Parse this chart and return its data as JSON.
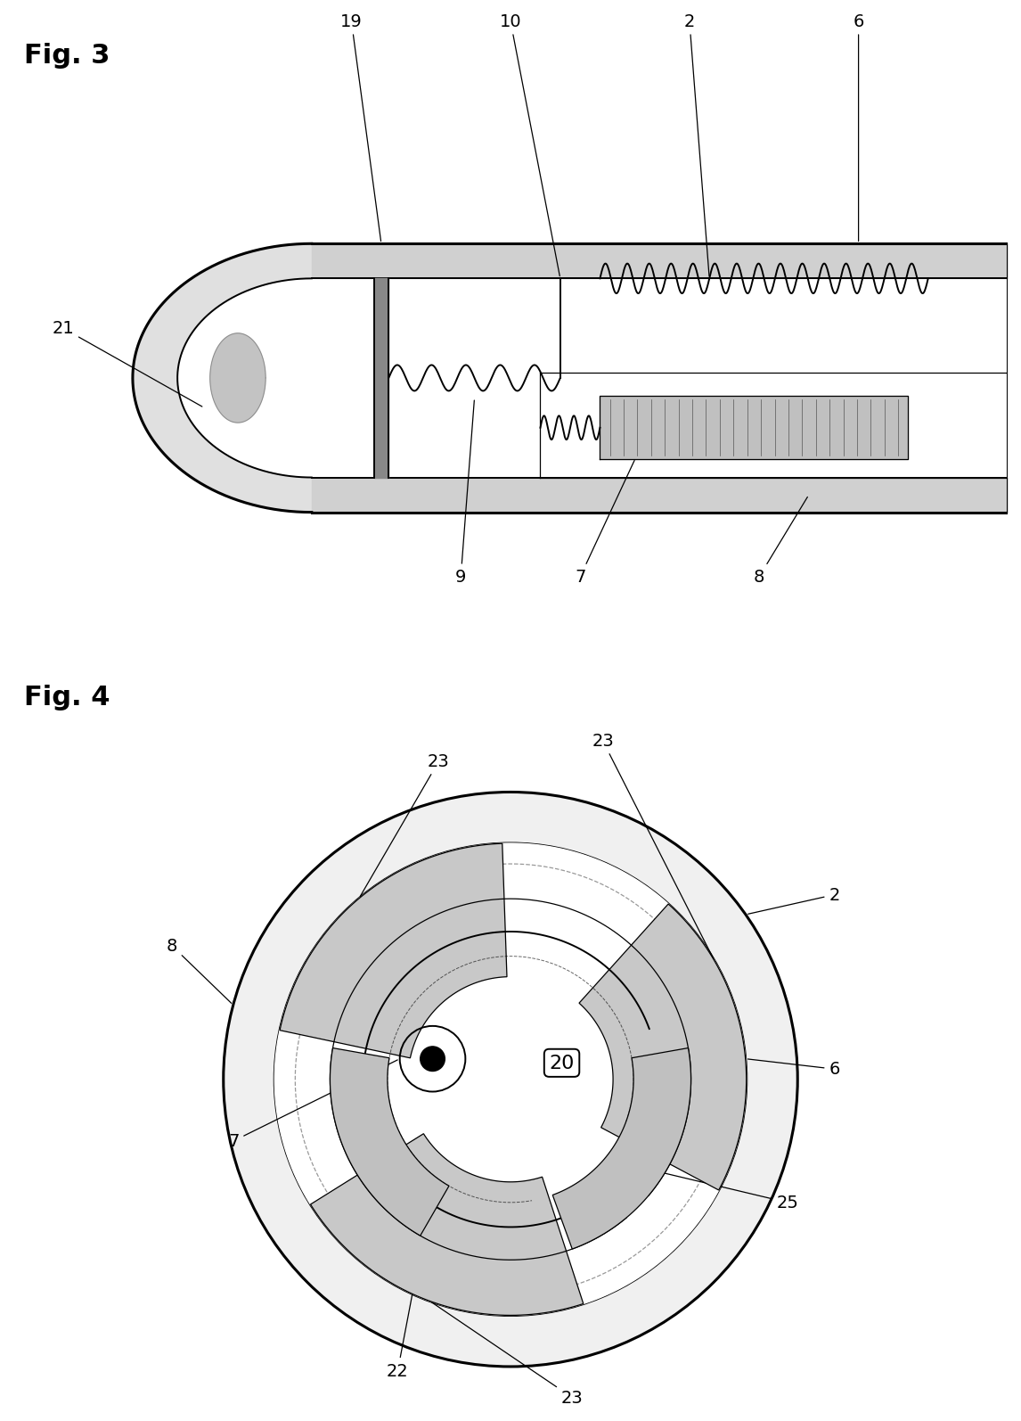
{
  "fig3_label": "Fig. 3",
  "fig4_label": "Fig. 4",
  "bg_color": "#ffffff",
  "line_color": "#000000"
}
